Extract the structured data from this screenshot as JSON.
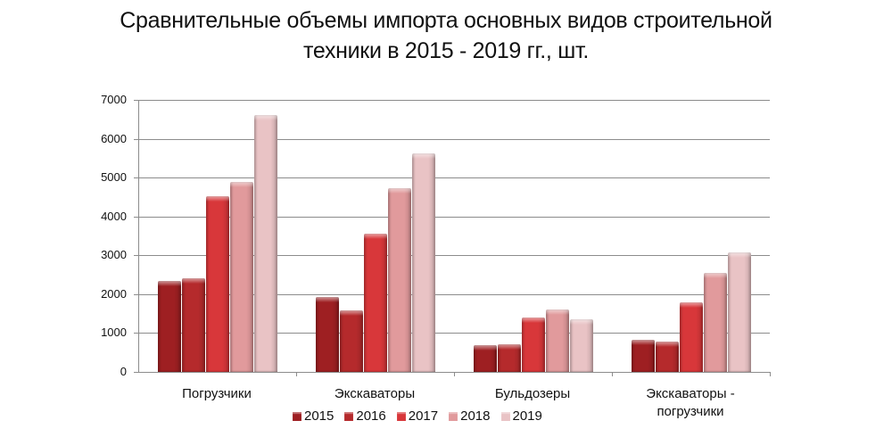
{
  "title_line1": "Сравнительные объемы импорта основных видов строительной",
  "title_line2": "техники в 2015 - 2019 гг., шт.",
  "chart_data": {
    "type": "bar",
    "title": "Сравнительные объемы импорта основных видов строительной техники в 2015 - 2019 гг., шт.",
    "xlabel": "",
    "ylabel": "",
    "ylim": [
      0,
      7000
    ],
    "yticks": [
      "0",
      "1000",
      "2000",
      "3000",
      "4000",
      "5000",
      "6000",
      "7000"
    ],
    "grid": true,
    "legend_position": "bottom",
    "categories": [
      "Погрузчики",
      "Экскаваторы",
      "Бульдозеры",
      "Экскаваторы - погрузчики"
    ],
    "series": [
      {
        "name": "2015",
        "color": "#9e1f22",
        "values": [
          2350,
          1930,
          690,
          830
        ]
      },
      {
        "name": "2016",
        "color": "#b52a2c",
        "values": [
          2400,
          1580,
          710,
          780
        ]
      },
      {
        "name": "2017",
        "color": "#d8373a",
        "values": [
          4530,
          3560,
          1400,
          1790
        ]
      },
      {
        "name": "2018",
        "color": "#e19a9c",
        "values": [
          4880,
          4720,
          1610,
          2550
        ]
      },
      {
        "name": "2019",
        "color": "#e9c3c5",
        "values": [
          6600,
          5620,
          1350,
          3080
        ]
      }
    ]
  },
  "legend": [
    "2015",
    "2016",
    "2017",
    "2018",
    "2019"
  ],
  "category_labels": {
    "c0": "Погрузчики",
    "c1": "Экскаваторы",
    "c2": "Бульдозеры",
    "c3a": "Экскаваторы -",
    "c3b": "погрузчики"
  }
}
